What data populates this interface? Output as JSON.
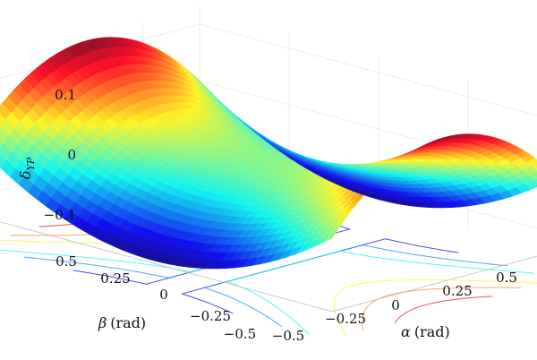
{
  "chart_data": {
    "type": "surface",
    "zlabel_symbol": "δ",
    "zlabel_subscript": "YP",
    "xlabel_symbol": "α",
    "xlabel_unit": "(rad)",
    "ylabel_symbol": "β",
    "ylabel_unit": "(rad)",
    "x_ticks": [
      "−0.5",
      "−0.25",
      "0",
      "0.25",
      "0.5"
    ],
    "x_tick_values": [
      -0.5,
      -0.25,
      0,
      0.25,
      0.5
    ],
    "y_ticks": [
      "0.5",
      "0.25",
      "0",
      "−0.25",
      "−0.5"
    ],
    "y_tick_values": [
      0.5,
      0.25,
      0,
      -0.25,
      -0.5
    ],
    "z_ticks": [
      "0.1",
      "0",
      "−0.1"
    ],
    "z_tick_values": [
      0.1,
      0,
      -0.1
    ],
    "xlim": [
      -0.5,
      0.5
    ],
    "ylim": [
      -0.5,
      0.5
    ],
    "zlim": [
      -0.13,
      0.13
    ],
    "surface": "saddle: z = 0.5·(β² − α²) approximately",
    "colormap": "jet",
    "contours_on_floor": true,
    "grid": true
  }
}
